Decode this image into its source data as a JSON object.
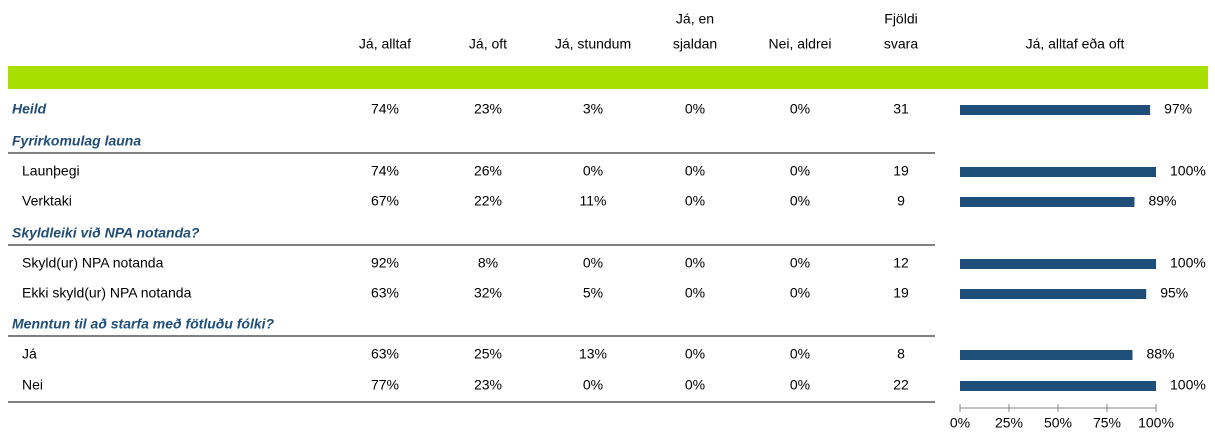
{
  "header": {
    "columns": [
      [
        "Já, alltaf"
      ],
      [
        "Já, oft"
      ],
      [
        "Já, stundum"
      ],
      [
        "Já, en",
        "sjaldan"
      ],
      [
        "Nei, aldrei"
      ],
      [
        "Fjöldi",
        "svara"
      ]
    ],
    "bar_title": "Já, alltaf eða oft"
  },
  "total": {
    "label": "Heild",
    "cells": [
      "74%",
      "23%",
      "3%",
      "0%",
      "0%",
      "31"
    ],
    "bar": 97,
    "bar_label": "97%"
  },
  "sections": [
    {
      "title": "Fyrirkomulag launa",
      "rows": [
        {
          "label": "Launþegi",
          "cells": [
            "74%",
            "26%",
            "0%",
            "0%",
            "0%",
            "19"
          ],
          "bar": 100,
          "bar_label": "100%"
        },
        {
          "label": "Verktaki",
          "cells": [
            "67%",
            "22%",
            "11%",
            "0%",
            "0%",
            "9"
          ],
          "bar": 89,
          "bar_label": "89%"
        }
      ]
    },
    {
      "title": "Skyldleiki við NPA notanda?",
      "rows": [
        {
          "label": "Skyld(ur) NPA notanda",
          "cells": [
            "92%",
            "8%",
            "0%",
            "0%",
            "0%",
            "12"
          ],
          "bar": 100,
          "bar_label": "100%"
        },
        {
          "label": "Ekki skyld(ur) NPA notanda",
          "cells": [
            "63%",
            "32%",
            "5%",
            "0%",
            "0%",
            "19"
          ],
          "bar": 95,
          "bar_label": "95%"
        }
      ]
    },
    {
      "title": "Menntun til að starfa með fötluðu fólki?",
      "rows": [
        {
          "label": "Já",
          "cells": [
            "63%",
            "25%",
            "13%",
            "0%",
            "0%",
            "8"
          ],
          "bar": 88,
          "bar_label": "88%"
        },
        {
          "label": "Nei",
          "cells": [
            "77%",
            "23%",
            "0%",
            "0%",
            "0%",
            "22"
          ],
          "bar": 100,
          "bar_label": "100%"
        }
      ]
    }
  ],
  "bar_axis": {
    "xlim": [
      0,
      100
    ],
    "xticks": [
      {
        "value": 0,
        "label": "0%"
      },
      {
        "value": 25,
        "label": "25%"
      },
      {
        "value": 50,
        "label": "50%"
      },
      {
        "value": 75,
        "label": "75%"
      },
      {
        "value": 100,
        "label": "100%"
      }
    ]
  },
  "bar_color": "#1f4e79",
  "band_color": "#a8de00"
}
